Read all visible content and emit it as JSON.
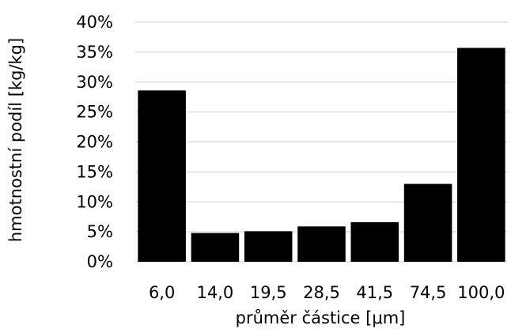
{
  "chart_data": {
    "type": "bar",
    "categories": [
      "6,0",
      "14,0",
      "19,5",
      "28,5",
      "41,5",
      "74,5",
      "100,0"
    ],
    "values": [
      28.6,
      4.8,
      5.1,
      5.9,
      6.6,
      13.0,
      35.7
    ],
    "title": "",
    "xlabel": "průměr částice [μm]",
    "ylabel": "hmotnostní podíl [kg/kg]",
    "ylim": [
      0,
      40
    ],
    "yticks": [
      0,
      5,
      10,
      15,
      20,
      25,
      30,
      35,
      40
    ],
    "yticklabels": [
      "0%",
      "5%",
      "10%",
      "15%",
      "20%",
      "25%",
      "30%",
      "35%",
      "40%"
    ],
    "grid": "horizontal",
    "legend": "none",
    "colors": {
      "bar": "#000000",
      "grid": "#d9d9d9",
      "text": "#000000",
      "background": "#ffffff"
    }
  }
}
